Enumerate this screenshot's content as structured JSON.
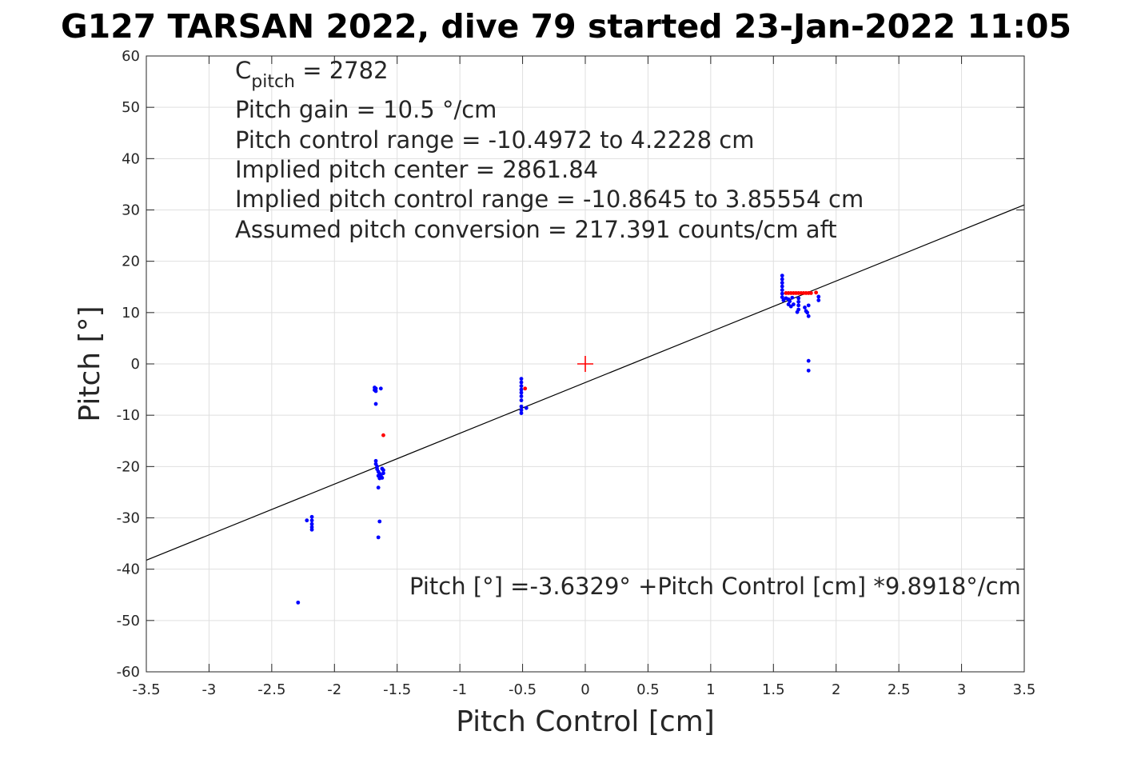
{
  "chart_data": {
    "type": "scatter",
    "title": "G127 TARSAN 2022, dive 79 started 23-Jan-2022 11:05",
    "xlabel": "Pitch Control [cm]",
    "ylabel": "Pitch [°]",
    "xlim": [
      -3.5,
      3.5
    ],
    "ylim": [
      -60,
      60
    ],
    "x_ticks": [
      -3.5,
      -3,
      -2.5,
      -2,
      -1.5,
      -1,
      -0.5,
      0,
      0.5,
      1,
      1.5,
      2,
      2.5,
      3,
      3.5
    ],
    "x_tick_labels": [
      "-3.5",
      "-3",
      "-2.5",
      "-2",
      "-1.5",
      "-1",
      "-0.5",
      "0",
      "0.5",
      "1",
      "1.5",
      "2",
      "2.5",
      "3",
      "3.5"
    ],
    "y_ticks": [
      -60,
      -50,
      -40,
      -30,
      -20,
      -10,
      0,
      10,
      20,
      30,
      40,
      50,
      60
    ],
    "y_tick_labels": [
      "-60",
      "-50",
      "-40",
      "-30",
      "-20",
      "-10",
      "0",
      "10",
      "20",
      "30",
      "40",
      "50",
      "60"
    ],
    "grid": true,
    "annotations": {
      "c_pitch_main": "C",
      "c_pitch_sub": "pitch",
      "c_pitch_value": " = 2782",
      "lines": [
        "Pitch gain = 10.5 °/cm",
        "Pitch control range = -10.4972 to 4.2228 cm",
        "Implied pitch center = 2861.84",
        "Implied pitch control range = -10.8645 to 3.85554 cm",
        "Assumed pitch conversion = 217.391 counts/cm aft"
      ],
      "fit_equation": "Pitch [°] =-3.6329° +Pitch Control [cm] *9.8918°/cm"
    },
    "fit_line": {
      "intercept": -3.6329,
      "slope": 9.8918,
      "color": "#000000"
    },
    "center_marker": {
      "x": 0,
      "y": 0,
      "color": "#ff0000"
    },
    "series": [
      {
        "color": "#0000ff",
        "points": [
          [
            -2.29,
            -46.5
          ],
          [
            -2.22,
            -30.5
          ],
          [
            -2.18,
            -29.8
          ],
          [
            -2.18,
            -30.5
          ],
          [
            -2.18,
            -31.2
          ],
          [
            -2.18,
            -31.8
          ],
          [
            -2.18,
            -32.3
          ],
          [
            -1.68,
            -4.6
          ],
          [
            -1.68,
            -5.1
          ],
          [
            -1.67,
            -4.8
          ],
          [
            -1.67,
            -5.3
          ],
          [
            -1.63,
            -4.8
          ],
          [
            -1.67,
            -7.8
          ],
          [
            -1.67,
            -18.9
          ],
          [
            -1.67,
            -19.5
          ],
          [
            -1.66,
            -20.0
          ],
          [
            -1.66,
            -20.5
          ],
          [
            -1.65,
            -21.0
          ],
          [
            -1.64,
            -21.4
          ],
          [
            -1.63,
            -21.8
          ],
          [
            -1.62,
            -22.2
          ],
          [
            -1.61,
            -21.3
          ],
          [
            -1.61,
            -20.7
          ],
          [
            -1.62,
            -20.4
          ],
          [
            -1.65,
            -21.8
          ],
          [
            -1.64,
            -22.3
          ],
          [
            -1.65,
            -24.1
          ],
          [
            -1.64,
            -30.7
          ],
          [
            -1.65,
            -33.8
          ],
          [
            -0.51,
            -2.9
          ],
          [
            -0.51,
            -3.6
          ],
          [
            -0.51,
            -4.3
          ],
          [
            -0.51,
            -5.0
          ],
          [
            -0.51,
            -5.6
          ],
          [
            -0.51,
            -6.3
          ],
          [
            -0.51,
            -7.1
          ],
          [
            -0.51,
            -8.3
          ],
          [
            -0.51,
            -9.0
          ],
          [
            -0.51,
            -9.6
          ],
          [
            -0.47,
            -8.6
          ],
          [
            1.57,
            17.2
          ],
          [
            1.57,
            16.5
          ],
          [
            1.57,
            15.8
          ],
          [
            1.57,
            15.1
          ],
          [
            1.57,
            14.4
          ],
          [
            1.57,
            13.7
          ],
          [
            1.57,
            13.0
          ],
          [
            1.58,
            12.4
          ],
          [
            1.6,
            12.8
          ],
          [
            1.62,
            12.6
          ],
          [
            1.63,
            12.2
          ],
          [
            1.62,
            11.6
          ],
          [
            1.64,
            11.2
          ],
          [
            1.65,
            12.9
          ],
          [
            1.66,
            11.6
          ],
          [
            1.7,
            12.8
          ],
          [
            1.7,
            12.1
          ],
          [
            1.7,
            11.4
          ],
          [
            1.7,
            10.6
          ],
          [
            1.69,
            10.1
          ],
          [
            1.75,
            11.0
          ],
          [
            1.76,
            10.3
          ],
          [
            1.77,
            10.0
          ],
          [
            1.78,
            11.4
          ],
          [
            1.78,
            9.3
          ],
          [
            1.78,
            0.6
          ],
          [
            1.78,
            -1.3
          ],
          [
            1.86,
            13.1
          ],
          [
            1.86,
            12.4
          ]
        ]
      },
      {
        "color": "#ff0000",
        "points": [
          [
            -1.61,
            -13.9
          ],
          [
            -0.48,
            -4.8
          ],
          [
            1.6,
            13.8
          ],
          [
            1.62,
            13.8
          ],
          [
            1.64,
            13.8
          ],
          [
            1.66,
            13.8
          ],
          [
            1.68,
            13.8
          ],
          [
            1.7,
            13.8
          ],
          [
            1.72,
            13.8
          ],
          [
            1.74,
            13.8
          ],
          [
            1.76,
            13.8
          ],
          [
            1.78,
            13.8
          ],
          [
            1.8,
            13.8
          ],
          [
            1.84,
            13.9
          ]
        ]
      }
    ]
  }
}
